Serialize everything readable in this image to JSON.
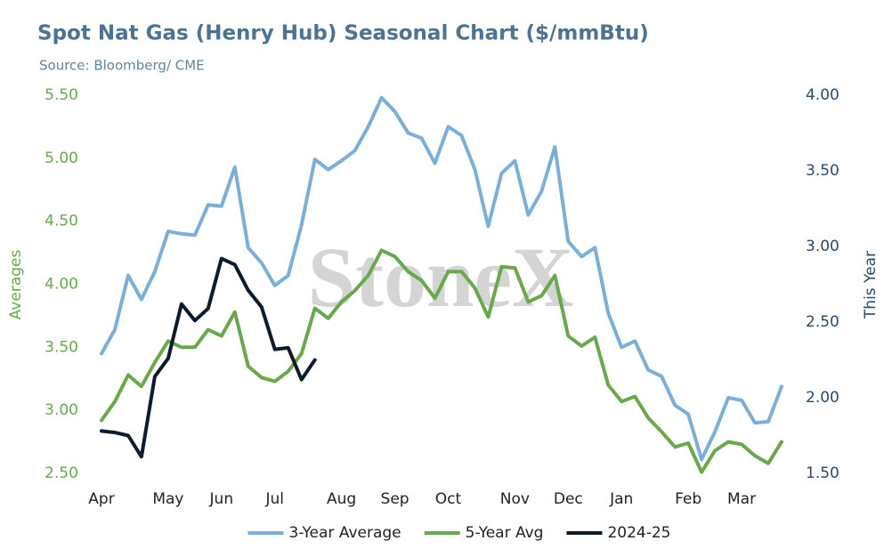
{
  "chart_data": {
    "type": "line",
    "title": "Spot Nat Gas (Henry Hub) Seasonal Chart ($/mmBtu)",
    "subtitle": "Source: Bloomberg/ CME",
    "watermark": "StoneX",
    "y_label": "Averages",
    "y2_label": "This Year",
    "x": [
      0,
      1,
      2,
      3,
      4,
      5,
      6,
      7,
      8,
      9,
      10,
      11,
      12,
      13,
      14,
      15,
      16,
      17,
      18,
      19,
      20,
      21,
      22,
      23,
      24,
      25,
      26,
      27,
      28,
      29,
      30,
      31,
      32,
      33,
      34,
      35,
      36,
      37,
      38,
      39,
      40,
      41,
      42,
      43,
      44,
      45,
      46,
      47,
      48,
      49,
      50,
      51
    ],
    "xlim": [
      0,
      51
    ],
    "xticks": [
      {
        "value": 0,
        "label": "Apr"
      },
      {
        "value": 5,
        "label": "May"
      },
      {
        "value": 9,
        "label": "Jun"
      },
      {
        "value": 13,
        "label": "Jul"
      },
      {
        "value": 18,
        "label": "Aug"
      },
      {
        "value": 22,
        "label": "Sep"
      },
      {
        "value": 26,
        "label": "Oct"
      },
      {
        "value": 31,
        "label": "Nov"
      },
      {
        "value": 35,
        "label": "Dec"
      },
      {
        "value": 39,
        "label": "Jan"
      },
      {
        "value": 44,
        "label": "Feb"
      },
      {
        "value": 48,
        "label": "Mar"
      }
    ],
    "ylim": [
      2.5,
      5.5
    ],
    "yticks": [
      {
        "value": 2.5,
        "label": "2.50"
      },
      {
        "value": 3,
        "label": "3.00"
      },
      {
        "value": 3.5,
        "label": "3.50"
      },
      {
        "value": 4,
        "label": "4.00"
      },
      {
        "value": 4.5,
        "label": "4.50"
      },
      {
        "value": 5,
        "label": "5.00"
      },
      {
        "value": 5.5,
        "label": "5.50"
      }
    ],
    "y2lim": [
      1.5,
      4
    ],
    "y2ticks": [
      {
        "value": 1.5,
        "label": "1.50"
      },
      {
        "value": 2,
        "label": "2.00"
      },
      {
        "value": 2.5,
        "label": "2.50"
      },
      {
        "value": 3,
        "label": "3.00"
      },
      {
        "value": 3.5,
        "label": "3.50"
      },
      {
        "value": 4,
        "label": "4.00"
      }
    ],
    "grid": false,
    "legend": "bottom",
    "series": [
      {
        "name": "3-Year Average",
        "color": "#7bafd8",
        "axis": "y",
        "values": [
          3.45,
          3.64,
          4.07,
          3.88,
          4.1,
          4.42,
          4.4,
          4.39,
          4.63,
          4.62,
          4.93,
          4.29,
          4.17,
          3.99,
          4.07,
          4.47,
          4.99,
          4.91,
          4.98,
          5.06,
          5.25,
          5.48,
          5.37,
          5.2,
          5.16,
          4.96,
          5.25,
          5.18,
          4.91,
          4.46,
          4.88,
          4.98,
          4.55,
          4.74,
          5.09,
          4.34,
          4.22,
          4.29,
          3.77,
          3.5,
          3.55,
          3.32,
          3.27,
          3.04,
          2.97,
          2.61,
          2.83,
          3.1,
          3.08,
          2.9,
          2.91,
          3.19
        ]
      },
      {
        "name": "5-Year Avg",
        "color": "#6aa84f",
        "axis": "y",
        "values": [
          2.92,
          3.07,
          3.28,
          3.19,
          3.38,
          3.55,
          3.5,
          3.5,
          3.64,
          3.59,
          3.78,
          3.35,
          3.26,
          3.23,
          3.31,
          3.45,
          3.81,
          3.73,
          3.86,
          3.95,
          4.07,
          4.27,
          4.22,
          4.1,
          4.03,
          3.89,
          4.1,
          4.1,
          3.97,
          3.74,
          4.14,
          4.13,
          3.86,
          3.91,
          4.07,
          3.59,
          3.51,
          3.58,
          3.2,
          3.07,
          3.11,
          2.94,
          2.83,
          2.71,
          2.74,
          2.51,
          2.68,
          2.75,
          2.73,
          2.64,
          2.58,
          2.75
        ]
      },
      {
        "name": "2024-25",
        "color": "#0f1b2b",
        "axis": "y2",
        "values": [
          1.78,
          1.77,
          1.75,
          1.61,
          2.14,
          2.26,
          2.62,
          2.51,
          2.59,
          2.92,
          2.88,
          2.71,
          2.6,
          2.32,
          2.33,
          2.12,
          2.25,
          null,
          null,
          null,
          null,
          null,
          null,
          null,
          null,
          null,
          null,
          null,
          null,
          null,
          null,
          null,
          null,
          null,
          null,
          null,
          null,
          null,
          null,
          null,
          null,
          null,
          null,
          null,
          null,
          null,
          null,
          null,
          null,
          null,
          null,
          null
        ]
      }
    ]
  }
}
